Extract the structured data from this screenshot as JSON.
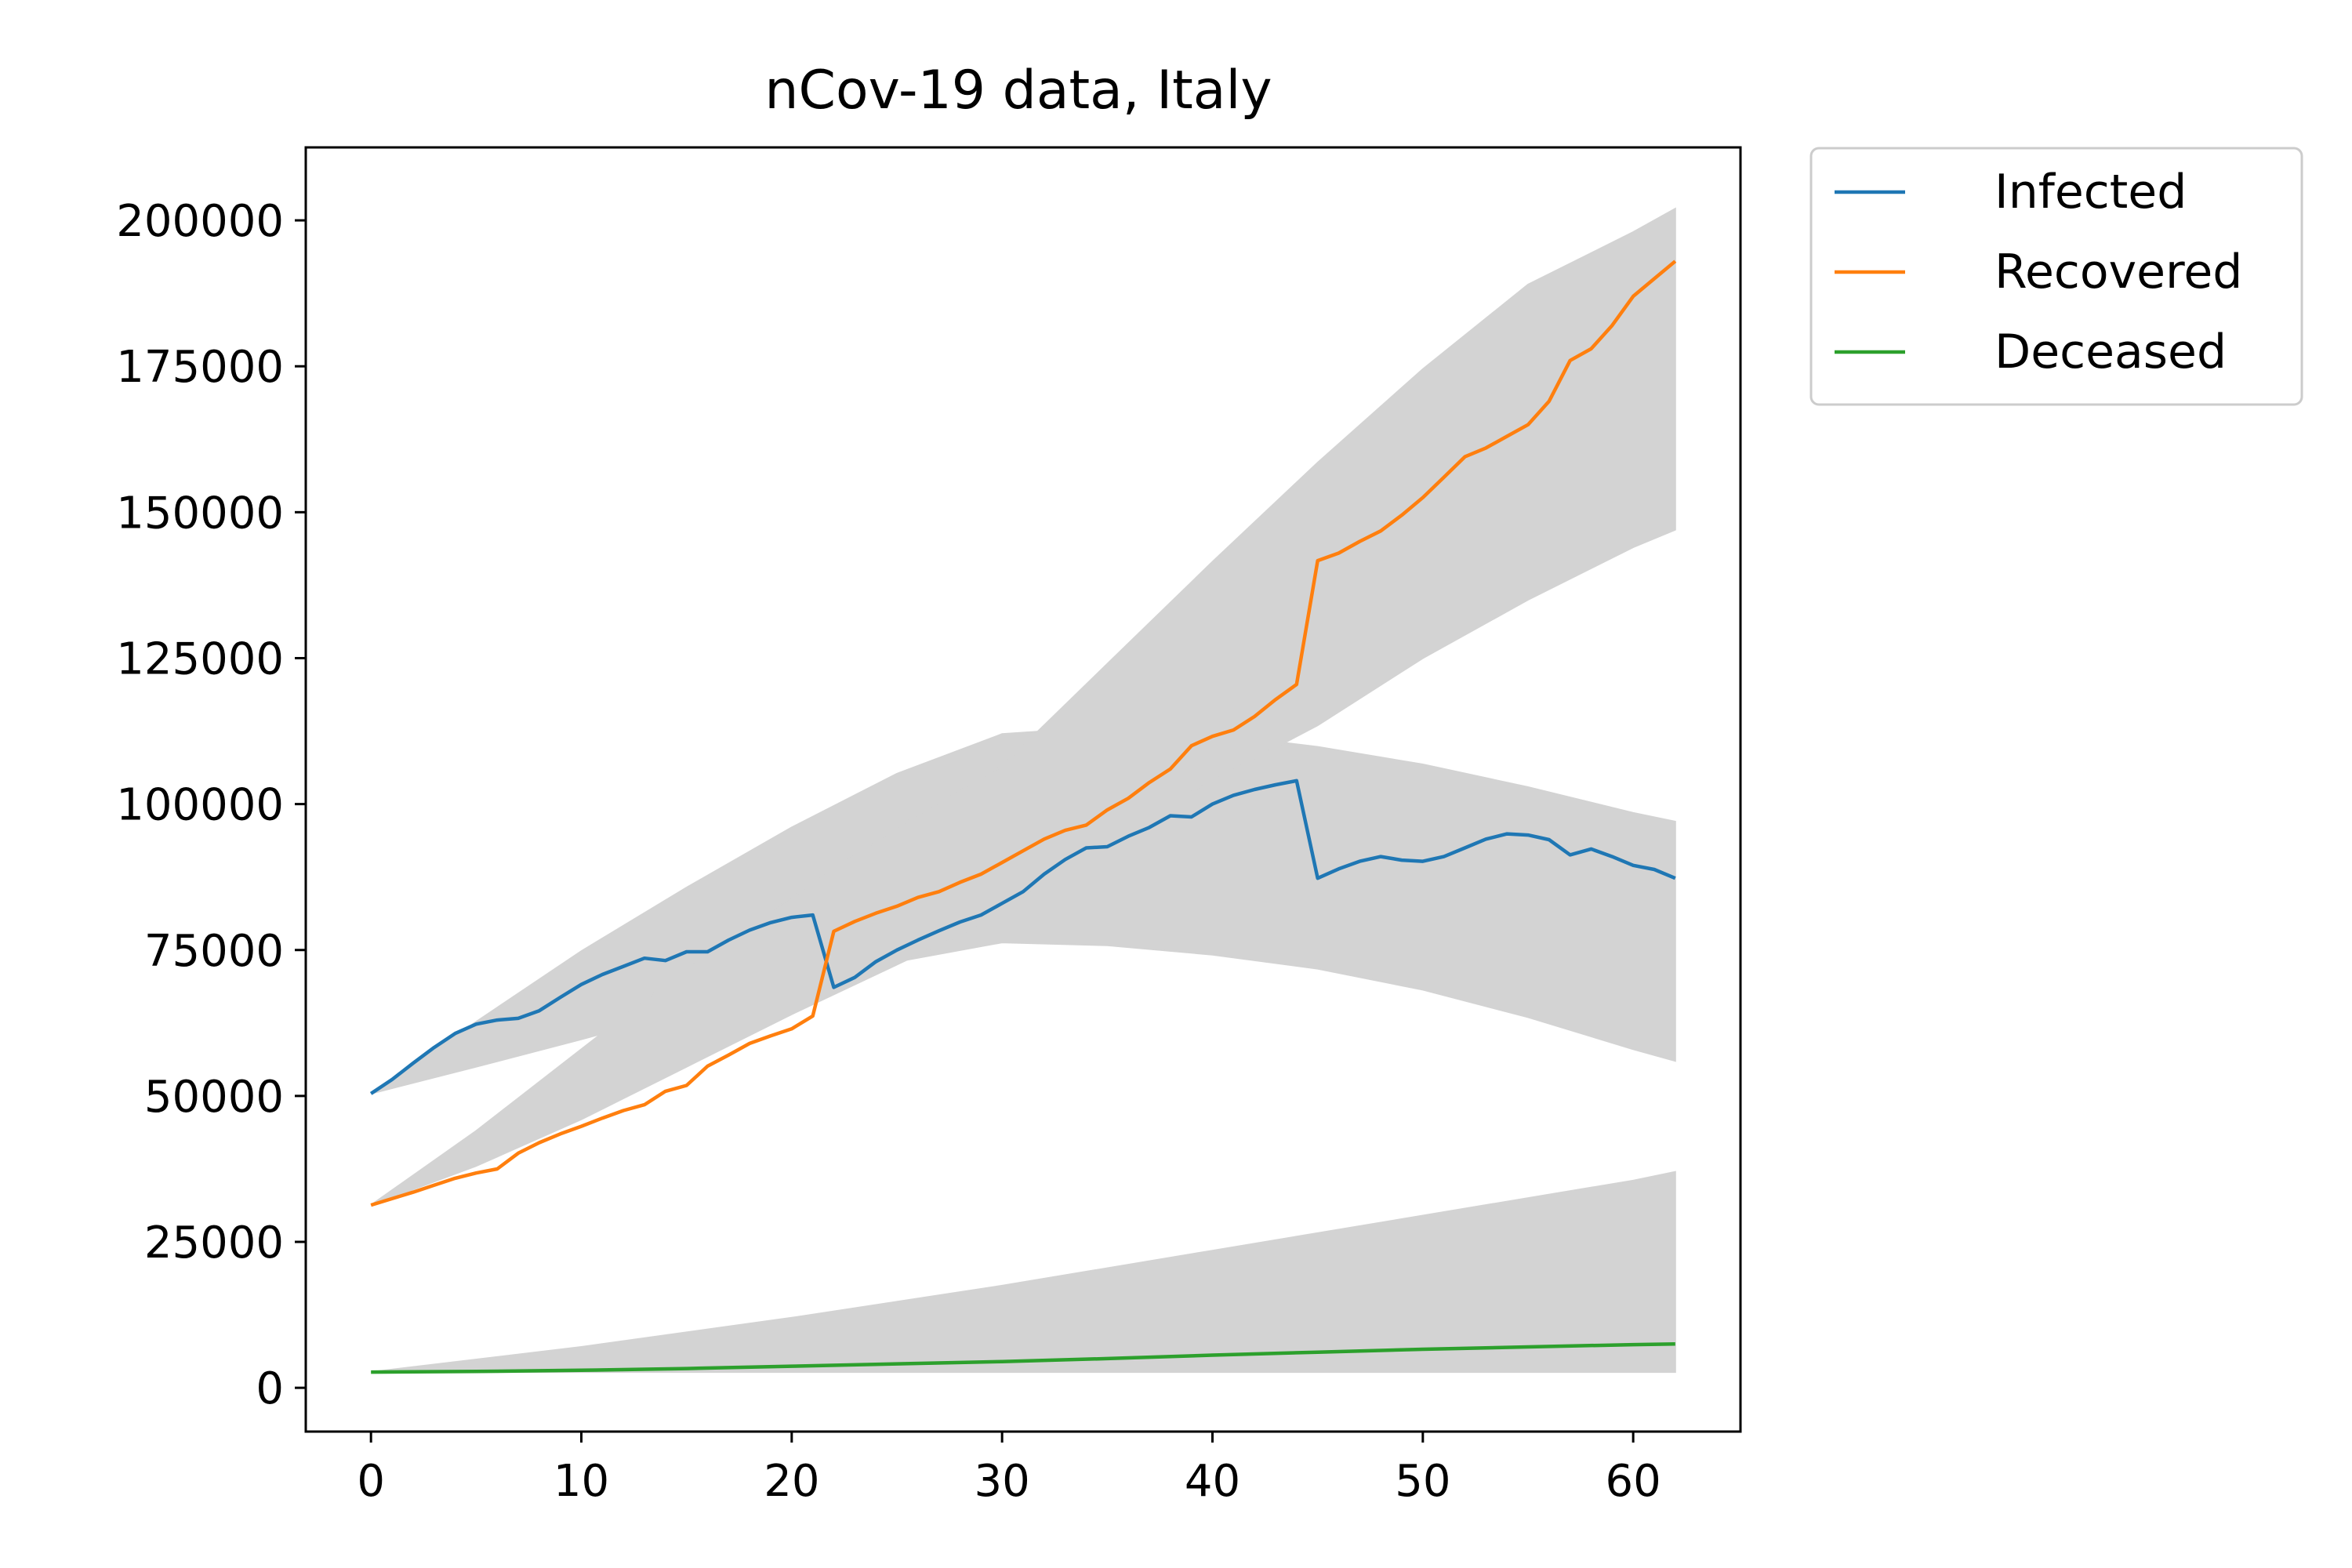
{
  "chart_data": {
    "type": "line",
    "title": "nCov-19 data, Italy",
    "xlabel": "",
    "ylabel": "",
    "xlim": [
      -3.1,
      65.1
    ],
    "ylim": [
      -7500,
      212500
    ],
    "x_ticks": [
      0,
      10,
      20,
      30,
      40,
      50,
      60
    ],
    "y_ticks": [
      0,
      25000,
      50000,
      75000,
      100000,
      125000,
      150000,
      175000,
      200000
    ],
    "grid": false,
    "legend": {
      "placement": "outside-top-right",
      "entries": [
        "Infected",
        "Recovered",
        "Deceased"
      ]
    },
    "series": [
      {
        "name": "Infected",
        "color": "#1f77b4",
        "x": [
          0,
          1,
          2,
          3,
          4,
          5,
          6,
          7,
          8,
          9,
          10,
          11,
          12,
          13,
          14,
          15,
          16,
          17,
          18,
          19,
          20,
          21,
          22,
          23,
          24,
          25,
          26,
          27,
          28,
          29,
          30,
          31,
          32,
          33,
          34,
          35,
          36,
          37,
          38,
          39,
          40,
          41,
          42,
          43,
          44,
          45,
          46,
          47,
          48,
          49,
          50,
          51,
          52,
          53,
          54,
          55,
          56,
          57,
          58,
          59,
          60,
          61,
          62
        ],
        "values": [
          50400,
          52800,
          55600,
          58300,
          60700,
          62300,
          63000,
          63300,
          64600,
          66900,
          69100,
          70800,
          72200,
          73600,
          73200,
          74700,
          74700,
          76700,
          78400,
          79700,
          80600,
          81000,
          68600,
          70300,
          73000,
          75000,
          76700,
          78300,
          79800,
          81000,
          83000,
          85000,
          88000,
          90500,
          92500,
          92700,
          94500,
          96000,
          98000,
          97800,
          100000,
          101500,
          102500,
          103300,
          104000,
          87300,
          88900,
          90200,
          91000,
          90400,
          90200,
          91000,
          92500,
          94000,
          94900,
          94700,
          93900,
          91300,
          92300,
          91000,
          89500,
          88800,
          87300
        ]
      },
      {
        "name": "Recovered",
        "color": "#ff7f0e",
        "x": [
          0,
          1,
          2,
          3,
          4,
          5,
          6,
          7,
          8,
          9,
          10,
          11,
          12,
          13,
          14,
          15,
          16,
          17,
          18,
          19,
          20,
          21,
          22,
          23,
          24,
          25,
          26,
          27,
          28,
          29,
          30,
          31,
          32,
          33,
          34,
          35,
          36,
          37,
          38,
          39,
          40,
          41,
          42,
          43,
          44,
          45,
          46,
          47,
          48,
          49,
          50,
          51,
          52,
          53,
          54,
          55,
          56,
          57,
          58,
          59,
          60,
          61,
          62
        ],
        "values": [
          31300,
          32400,
          33500,
          34700,
          35900,
          36800,
          37500,
          40200,
          42000,
          43500,
          44800,
          46200,
          47500,
          48500,
          50800,
          51800,
          55100,
          57000,
          59000,
          60300,
          61500,
          63700,
          78200,
          79900,
          81300,
          82500,
          84000,
          85000,
          86600,
          88000,
          90000,
          92000,
          94000,
          95500,
          96400,
          99000,
          101000,
          103700,
          106000,
          110000,
          111600,
          112700,
          115000,
          117900,
          120500,
          141700,
          143000,
          145000,
          146800,
          149500,
          152500,
          156000,
          159500,
          161000,
          163000,
          165000,
          169000,
          176000,
          178000,
          182000,
          187000,
          190000,
          193000
        ]
      },
      {
        "name": "Deceased",
        "color": "#2ca02c",
        "x": [
          0,
          5,
          10,
          15,
          20,
          25,
          30,
          35,
          40,
          45,
          50,
          55,
          60,
          62
        ],
        "values": [
          2700,
          2800,
          3000,
          3300,
          3700,
          4100,
          4500,
          5000,
          5600,
          6100,
          6600,
          7000,
          7400,
          7500
        ]
      }
    ],
    "uncertainty_bands": [
      {
        "fill": "#d3d3d3",
        "label_for": "Infected",
        "x": [
          0,
          5,
          10,
          15,
          20,
          25,
          30,
          35,
          40,
          45,
          50,
          55,
          60,
          62
        ],
        "upper": [
          50400,
          62700,
          74800,
          85700,
          96000,
          105200,
          112000,
          113200,
          112000,
          109800,
          106800,
          102900,
          98500,
          97000
        ],
        "lower": [
          50400,
          55000,
          59700,
          64600,
          69000,
          73000,
          76300,
          75800,
          74200,
          71800,
          68200,
          63500,
          58000,
          56000
        ]
      },
      {
        "fill": "#d3d3d3",
        "label_for": "Recovered",
        "x": [
          0,
          5,
          10,
          15,
          20,
          25,
          30,
          35,
          40,
          45,
          50,
          55,
          60,
          62
        ],
        "upper": [
          31300,
          44000,
          58000,
          72000,
          84000,
          96000,
          106500,
          124000,
          141500,
          158500,
          174500,
          189000,
          198000,
          202000
        ],
        "lower": [
          31300,
          38000,
          46000,
          55000,
          64000,
          72500,
          81000,
          95000,
          104000,
          113500,
          125000,
          135000,
          144000,
          147000
        ]
      },
      {
        "fill": "#d3d3d3",
        "label_for": "Deceased",
        "x": [
          0,
          10,
          20,
          30,
          40,
          50,
          60,
          62
        ],
        "upper": [
          2700,
          7000,
          12000,
          17500,
          23500,
          29500,
          35500,
          37000
        ],
        "lower": [
          2700,
          2700,
          2700,
          2700,
          2700,
          2700,
          2700,
          2700
        ]
      }
    ]
  }
}
